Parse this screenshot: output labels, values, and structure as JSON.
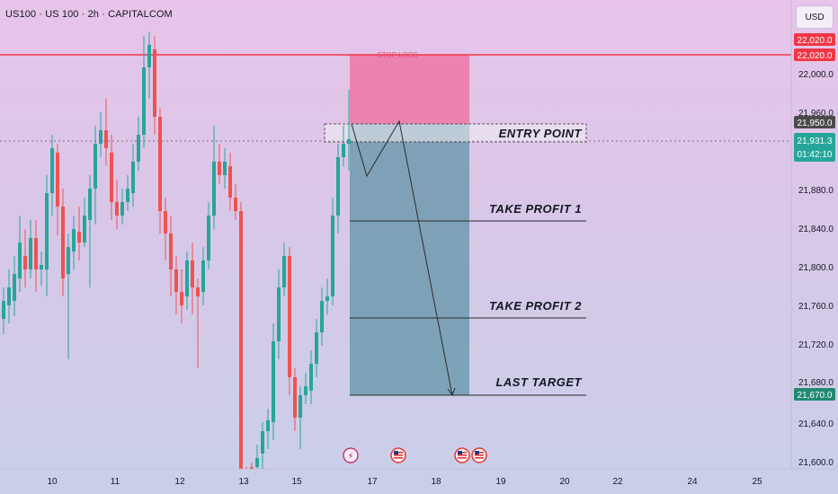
{
  "header": {
    "symbol": "US100 · US 100 · 2h · CAPITALCOM",
    "currency_button": "USD"
  },
  "colors": {
    "up": "#26a69a",
    "down": "#ef5350",
    "stop_zone": "#ee6fa0",
    "target_zone": "#5b93a4",
    "red_line": "#f23645"
  },
  "y_axis": {
    "ticks": [
      "22,000.0",
      "21,960.0",
      "21,880.0",
      "21,840.0",
      "21,800.0",
      "21,760.0",
      "21,720.0",
      "21,680.0",
      "21,640.0",
      "21,600.0"
    ],
    "price_tags": [
      {
        "text": "22,020.0",
        "color": "#f23645"
      },
      {
        "text": "22,020.0",
        "color": "#f23645"
      },
      {
        "text": "21,950.0",
        "color": "#4a4a4a"
      },
      {
        "text": "21,931.3",
        "sub": "01:42:10",
        "color": "#26a69a"
      },
      {
        "text": "21,670.0",
        "color": "#1e8a72"
      }
    ]
  },
  "x_axis": {
    "ticks": [
      "10",
      "11",
      "12",
      "13",
      "15",
      "17",
      "18",
      "19",
      "20",
      "22",
      "24",
      "25"
    ]
  },
  "annotations": {
    "stop_loss": "STOP LOSS",
    "entry": "ENTRY POINT",
    "tp1": "TAKE PROFIT 1",
    "tp2": "TAKE PROFIT 2",
    "last": "LAST TARGET"
  },
  "event_icons": [
    {
      "kind": "lightning-icon",
      "glyph": "⚡"
    },
    {
      "kind": "us-flag-icon"
    },
    {
      "kind": "us-flag-icon"
    },
    {
      "kind": "us-flag-icon"
    }
  ]
}
